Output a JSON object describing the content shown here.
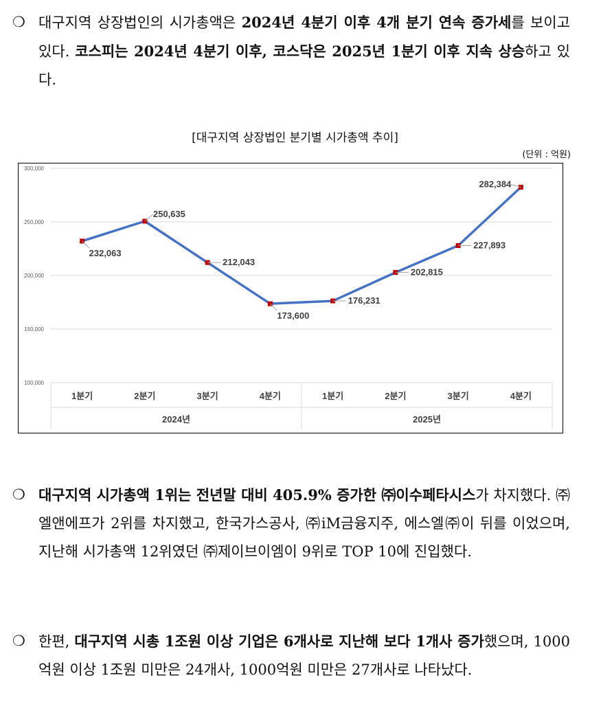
{
  "bullet_symbol": "❍",
  "paragraphs": [
    {
      "segments": [
        {
          "text": "대구지역 상장법인의 시가총액은 ",
          "bold": false
        },
        {
          "text": "2024년 4분기 이후 4개 분기 연속 증가세",
          "bold": true
        },
        {
          "text": "를 보이고 있다. ",
          "bold": false
        },
        {
          "text": "코스피는 2024년 4분기 이후, 코스닥은 2025년 1분기 이후 지속 상승",
          "bold": true
        },
        {
          "text": "하고 있다.",
          "bold": false
        }
      ]
    },
    {
      "segments": [
        {
          "text": "대구지역 시가총액 1위는 전년말 대비 405.9% 증가한 ㈜이수페타시스",
          "bold": true
        },
        {
          "text": "가 차지했다. ㈜엘앤에프가 2위를 차지했고, 한국가스공사, ㈜iM금융지주, 에스엘㈜이 뒤를 이었으며, 지난해 시가총액 12위였던 ㈜제이브이엠이 9위로 TOP 10에 진입했다.",
          "bold": false
        }
      ]
    },
    {
      "segments": [
        {
          "text": "한편, ",
          "bold": false
        },
        {
          "text": "대구지역 시총 1조원 이상 기업은 6개사로 지난해 보다 1개사 증가",
          "bold": true
        },
        {
          "text": "했으며, 1000억원 이상 1조원 미만은 24개사, 1000억원 미만은 27개사로 나타났다.",
          "bold": false
        }
      ]
    }
  ],
  "chart_title": "[대구지역 상장법인 분기별 시가총액 추이]",
  "unit_label": "(단위 : 억원)",
  "chart_data": {
    "type": "line",
    "title": "[대구지역 상장법인 분기별 시가총액 추이]",
    "categories": [
      "1분기",
      "2분기",
      "3분기",
      "4분기",
      "1분기",
      "2분기",
      "3분기",
      "4분기"
    ],
    "groups": [
      {
        "label": "2024년",
        "span": [
          0,
          3
        ]
      },
      {
        "label": "2025년",
        "span": [
          4,
          7
        ]
      }
    ],
    "values": [
      232063,
      250635,
      212043,
      173600,
      176231,
      202815,
      227893,
      282384
    ],
    "value_labels": [
      "232,063",
      "250,635",
      "212,043",
      "173,600",
      "176,231",
      "202,815",
      "227,893",
      "282,384"
    ],
    "label_side": [
      "below",
      "above",
      "right",
      "below",
      "right",
      "right",
      "right",
      "left"
    ],
    "ylim": [
      100000,
      300000
    ],
    "yticks": [
      100000,
      150000,
      200000,
      250000,
      300000
    ],
    "ytick_labels": [
      "100,000",
      "150,000",
      "200,000",
      "250,000",
      "300,000"
    ],
    "grid": true,
    "line_color": "#4472C4",
    "marker_color": "#C00000"
  }
}
